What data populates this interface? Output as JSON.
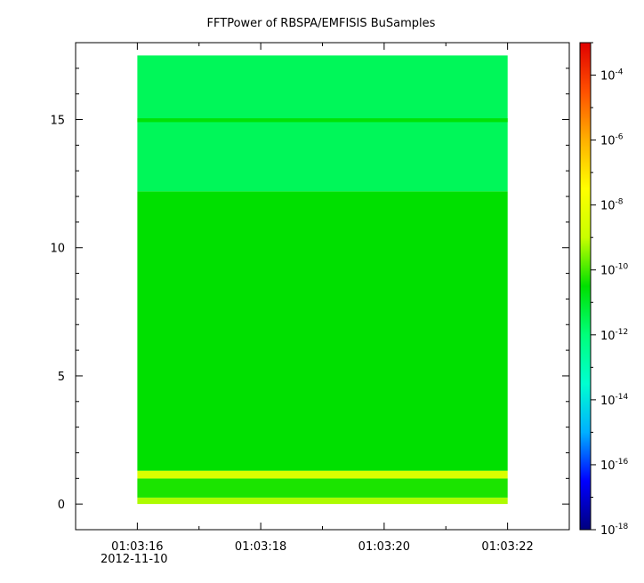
{
  "chart_data": {
    "type": "heatmap",
    "title": "FFTPower of RBSPA/EMFISIS  BuSamples",
    "xlabel": "",
    "ylabel": "",
    "x_axis": {
      "range": [
        "01:03:15.0",
        "01:03:23.0"
      ],
      "tick_labels": [
        "01:03:16",
        "01:03:18",
        "01:03:20",
        "01:03:22"
      ],
      "date_label": "2012-11-10"
    },
    "y_axis": {
      "range": [
        -1,
        18
      ],
      "ticks": [
        0,
        5,
        10,
        15
      ],
      "tick_labels": [
        "0",
        "5",
        "10",
        "15"
      ]
    },
    "data_extent": {
      "x": [
        "01:03:16.0",
        "01:03:22.0"
      ],
      "y": [
        0,
        17.5
      ]
    },
    "bands": [
      {
        "y_range": [
          0,
          0.25
        ],
        "level": -9.2
      },
      {
        "y_range": [
          0.25,
          1.0
        ],
        "level": -10.3
      },
      {
        "y_range": [
          1.0,
          1.3
        ],
        "level": -8.5
      },
      {
        "y_range": [
          1.3,
          12.2
        ],
        "level": -10.5
      },
      {
        "y_range": [
          12.2,
          17.5
        ],
        "level": -11.6
      },
      {
        "y_range": [
          14.9,
          15.05
        ],
        "level": -10.6
      }
    ],
    "colorbar": {
      "scale": "log",
      "range": [
        1e-18,
        0.001
      ],
      "tick_bases": [
        "10",
        "10",
        "10",
        "10",
        "10",
        "10",
        "10",
        "10"
      ],
      "tick_exponents": [
        "-4",
        "-6",
        "-8",
        "-10",
        "-12",
        "-14",
        "-16",
        "-18"
      ],
      "tick_values": [
        -4,
        -6,
        -8,
        -10,
        -12,
        -14,
        -16,
        -18
      ],
      "colors": [
        "#00007f",
        "#0000ff",
        "#00b0ff",
        "#00ffd0",
        "#00ff7a",
        "#00e000",
        "#c8ff00",
        "#ffff00",
        "#ffb000",
        "#ff5000",
        "#e00000"
      ]
    },
    "grid": false,
    "legend": "none"
  }
}
